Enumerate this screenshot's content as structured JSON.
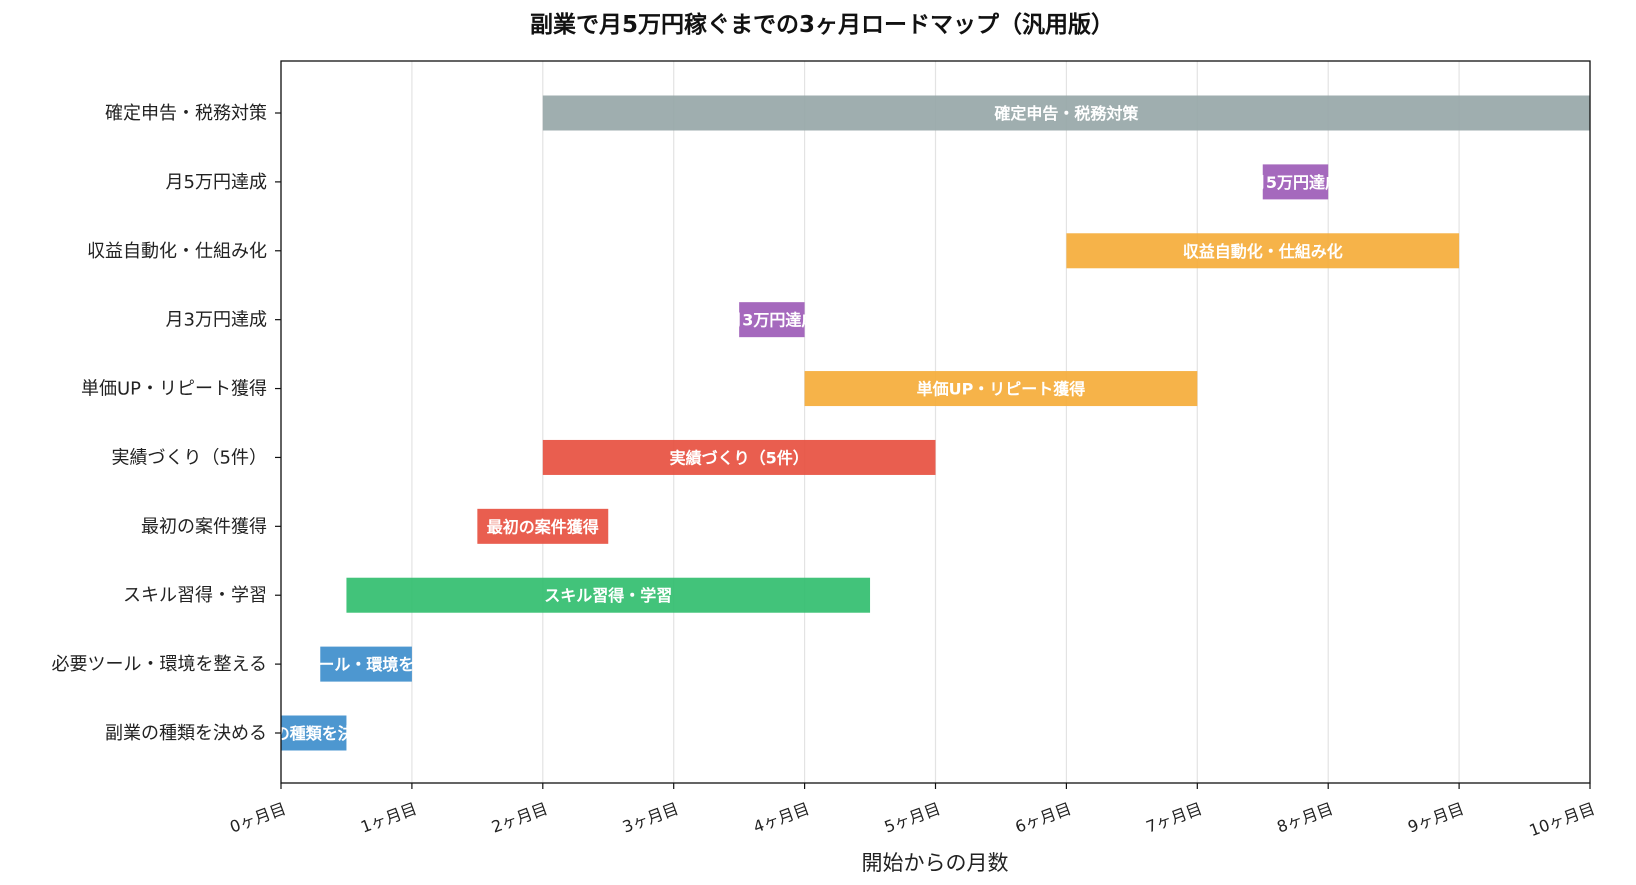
{
  "chart_data": {
    "type": "bar",
    "orientation": "horizontal",
    "title": "副業で月5万円稼ぐまでの3ヶ月ロードマップ（汎用版）",
    "xlabel": "開始からの月数",
    "ylabel": "",
    "xlim": [
      0,
      10
    ],
    "grid": "x",
    "xtick_labels": [
      "0ヶ月目",
      "1ヶ月目",
      "2ヶ月目",
      "3ヶ月目",
      "4ヶ月目",
      "5ヶ月目",
      "6ヶ月目",
      "7ヶ月目",
      "8ヶ月目",
      "9ヶ月目",
      "10ヶ月目"
    ],
    "tasks": [
      {
        "label": "確定申告・税務対策",
        "start": 2.0,
        "end": 10.0,
        "color": "#95a5a6"
      },
      {
        "label": "月5万円達成",
        "start": 7.5,
        "end": 8.0,
        "color": "#9b59b6"
      },
      {
        "label": "収益自動化・仕組み化",
        "start": 6.0,
        "end": 9.0,
        "color": "#f5ab35"
      },
      {
        "label": "月3万円達成",
        "start": 3.5,
        "end": 4.0,
        "color": "#9b59b6"
      },
      {
        "label": "単価UP・リピート獲得",
        "start": 4.0,
        "end": 7.0,
        "color": "#f5ab35"
      },
      {
        "label": "実績づくり（5件）",
        "start": 2.0,
        "end": 5.0,
        "color": "#e74c3c"
      },
      {
        "label": "最初の案件獲得",
        "start": 1.5,
        "end": 2.5,
        "color": "#e74c3c"
      },
      {
        "label": "スキル習得・学習",
        "start": 0.5,
        "end": 4.5,
        "color": "#2ebc6b"
      },
      {
        "label": "必要ツール・環境を整える",
        "start": 0.3,
        "end": 1.0,
        "color": "#3a8ccb"
      },
      {
        "label": "副業の種類を決める",
        "start": 0.0,
        "end": 0.5,
        "color": "#3a8ccb"
      }
    ]
  }
}
